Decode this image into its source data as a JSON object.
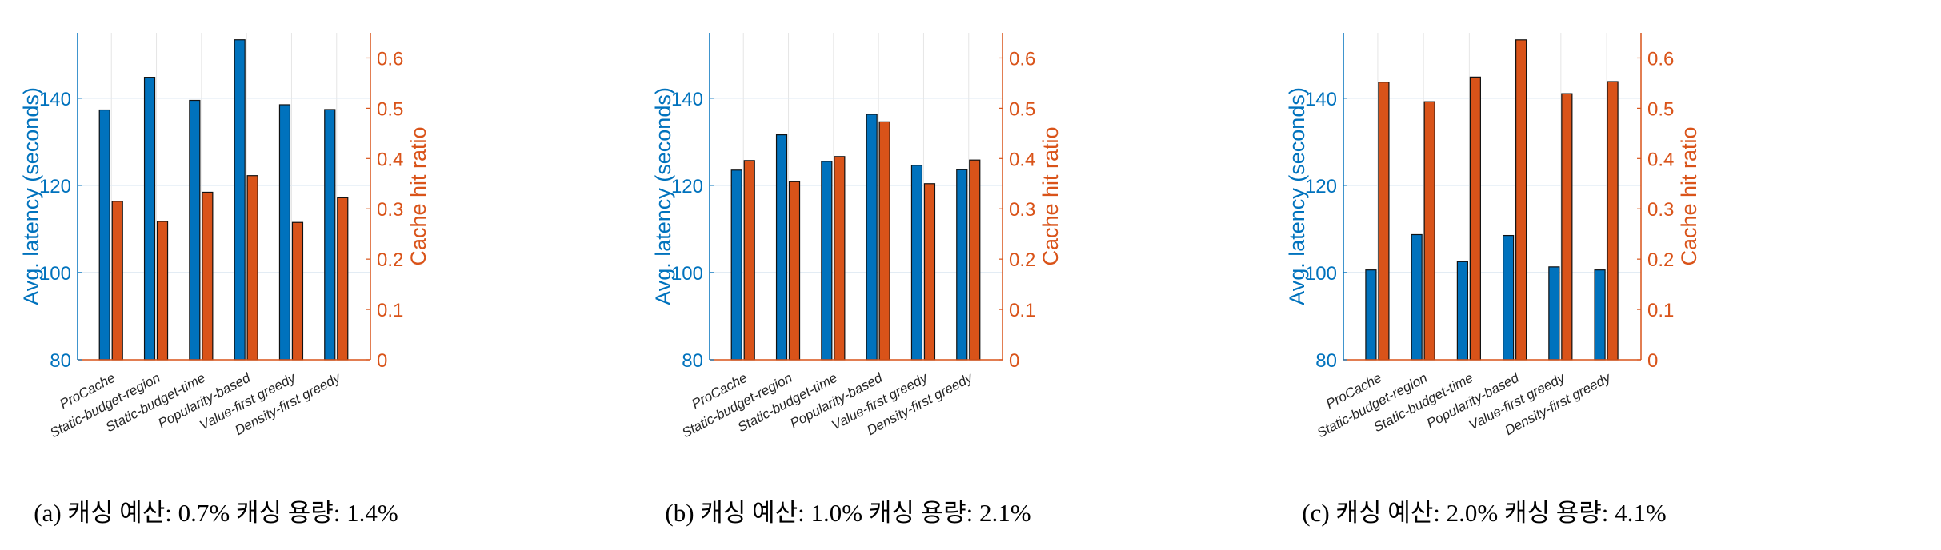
{
  "colors": {
    "latency": "#0072bd",
    "hit_ratio": "#d95319",
    "grid": "#dfe9f3"
  },
  "chart_data": [
    {
      "type": "bar",
      "caption": "(a) 캐싱 예산: 0.7% 캐싱 용량: 1.4%",
      "categories": [
        "ProCache",
        "Static-budget-region",
        "Static-budget-time",
        "Popularity-based",
        "Value-first greedy",
        "Density-first greedy"
      ],
      "ylabel_left": "Avg. latency (seconds)",
      "ylabel_right": "Cache hit ratio",
      "ylim_left": [
        80,
        155
      ],
      "yticks_left": [
        "80",
        "100",
        "120",
        "140"
      ],
      "ylim_right": [
        0,
        0.65
      ],
      "yticks_right": [
        "0",
        "0.1",
        "0.2",
        "0.3",
        "0.4",
        "0.5",
        "0.6"
      ],
      "grid": true,
      "series": [
        {
          "axis": "left",
          "values": [
            137.3,
            144.8,
            139.5,
            153.4,
            138.5,
            137.4
          ]
        },
        {
          "axis": "right",
          "values": [
            0.315,
            0.275,
            0.333,
            0.366,
            0.273,
            0.322
          ]
        }
      ]
    },
    {
      "type": "bar",
      "caption": "(b) 캐싱 예산: 1.0% 캐싱 용량: 2.1%",
      "categories": [
        "ProCache",
        "Static-budget-region",
        "Static-budget-time",
        "Popularity-based",
        "Value-first greedy",
        "Density-first greedy"
      ],
      "ylabel_left": "Avg. latency (seconds)",
      "ylabel_right": "Cache hit ratio",
      "ylim_left": [
        80,
        155
      ],
      "yticks_left": [
        "80",
        "100",
        "120",
        "140"
      ],
      "ylim_right": [
        0,
        0.65
      ],
      "yticks_right": [
        "0",
        "0.1",
        "0.2",
        "0.3",
        "0.4",
        "0.5",
        "0.6"
      ],
      "grid": true,
      "series": [
        {
          "axis": "left",
          "values": [
            123.5,
            131.6,
            125.5,
            136.3,
            124.6,
            123.6
          ]
        },
        {
          "axis": "right",
          "values": [
            0.396,
            0.354,
            0.404,
            0.473,
            0.35,
            0.397
          ]
        }
      ]
    },
    {
      "type": "bar",
      "caption": "(c) 캐싱 예산: 2.0% 캐싱 용량: 4.1%",
      "categories": [
        "ProCache",
        "Static-budget-region",
        "Static-budget-time",
        "Popularity-based",
        "Value-first greedy",
        "Density-first greedy"
      ],
      "ylabel_left": "Avg. latency (seconds)",
      "ylabel_right": "Cache hit ratio",
      "ylim_left": [
        80,
        155
      ],
      "yticks_left": [
        "80",
        "100",
        "120",
        "140"
      ],
      "ylim_right": [
        0,
        0.65
      ],
      "yticks_right": [
        "0",
        "0.1",
        "0.2",
        "0.3",
        "0.4",
        "0.5",
        "0.6"
      ],
      "grid": true,
      "series": [
        {
          "axis": "left",
          "values": [
            100.6,
            108.7,
            102.5,
            108.5,
            101.3,
            100.6
          ]
        },
        {
          "axis": "right",
          "values": [
            0.552,
            0.513,
            0.562,
            0.636,
            0.529,
            0.553
          ]
        }
      ]
    }
  ]
}
